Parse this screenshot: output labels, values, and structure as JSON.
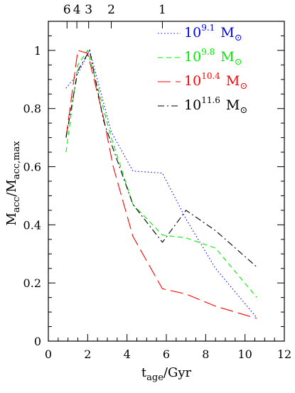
{
  "chart_data": {
    "type": "line",
    "xlabel": {
      "main": "t",
      "sub": "age",
      "suffix": "/Gyr"
    },
    "ylabel": {
      "main": "M",
      "sub": "acc",
      "mid": "/M",
      "sub2": "acc,max"
    },
    "xlim": [
      0,
      12
    ],
    "ylim": [
      0,
      1.1
    ],
    "x_ticks": [
      "0",
      "2",
      "4",
      "6",
      "8",
      "10",
      "12"
    ],
    "y_ticks": [
      "0",
      "0.2",
      "0.4",
      "0.6",
      "0.8",
      "1"
    ],
    "top_axis_labels": [
      {
        "label": "6",
        "t": 0.95
      },
      {
        "label": "4",
        "t": 1.45
      },
      {
        "label": "3",
        "t": 2.05
      },
      {
        "label": "2",
        "t": 3.2
      },
      {
        "label": "1",
        "t": 5.8
      }
    ],
    "legend_position": "top-right",
    "series": [
      {
        "legend": {
          "base": "10",
          "exp": "9.1",
          "unit": "M",
          "sun": "⊙"
        },
        "color": "#0000ff",
        "dash": "1.5 3",
        "points": [
          [
            0.9,
            0.87
          ],
          [
            1.5,
            0.92
          ],
          [
            2.1,
            1.0
          ],
          [
            3.2,
            0.72
          ],
          [
            4.3,
            0.585
          ],
          [
            5.8,
            0.578
          ],
          [
            7.0,
            0.42
          ],
          [
            8.5,
            0.25
          ],
          [
            10.6,
            0.08
          ]
        ]
      },
      {
        "legend": {
          "base": "10",
          "exp": "9.8",
          "unit": "M",
          "sun": "⊙"
        },
        "color": "#00ee00",
        "dash": "7 5",
        "points": [
          [
            0.9,
            0.65
          ],
          [
            1.5,
            0.95
          ],
          [
            2.0,
            1.0
          ],
          [
            3.2,
            0.7
          ],
          [
            4.3,
            0.47
          ],
          [
            5.8,
            0.365
          ],
          [
            7.0,
            0.355
          ],
          [
            8.5,
            0.32
          ],
          [
            10.6,
            0.15
          ]
        ]
      },
      {
        "legend": {
          "base": "10",
          "exp": "10.4",
          "unit": "M",
          "sun": "⊙"
        },
        "color": "#ff0000",
        "dash": "18 7",
        "points": [
          [
            0.9,
            0.7
          ],
          [
            1.5,
            1.0
          ],
          [
            2.0,
            0.99
          ],
          [
            2.8,
            0.77
          ],
          [
            3.3,
            0.6
          ],
          [
            4.3,
            0.36
          ],
          [
            5.8,
            0.18
          ],
          [
            7.0,
            0.162
          ],
          [
            8.5,
            0.12
          ],
          [
            10.6,
            0.078
          ]
        ]
      },
      {
        "legend": {
          "base": "10",
          "exp": "11.6",
          "unit": "M",
          "sun": "⊙"
        },
        "color": "#000000",
        "dash": "9 4 2 4",
        "points": [
          [
            0.9,
            0.7
          ],
          [
            1.5,
            0.93
          ],
          [
            2.1,
            1.0
          ],
          [
            2.8,
            0.76
          ],
          [
            3.3,
            0.66
          ],
          [
            4.3,
            0.47
          ],
          [
            5.8,
            0.34
          ],
          [
            7.0,
            0.45
          ],
          [
            8.5,
            0.38
          ],
          [
            10.6,
            0.255
          ]
        ]
      }
    ]
  }
}
